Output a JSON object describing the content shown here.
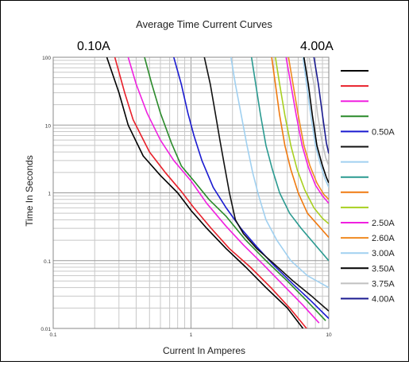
{
  "chart_data": {
    "type": "line",
    "title": "Average Time Current Curves",
    "range_left_label": "0.10A",
    "range_right_label": "4.00A",
    "xlabel": "Current In Amperes",
    "ylabel": "Time In Seconds",
    "x_scale": "log",
    "y_scale": "log",
    "xlim": [
      0.1,
      10
    ],
    "ylim": [
      0.01,
      100
    ],
    "x_ticks": [
      0.1,
      1,
      10
    ],
    "x_tick_labels": [
      "0.1",
      "1",
      "10"
    ],
    "y_ticks": [
      0.01,
      0.1,
      1,
      10,
      100
    ],
    "y_tick_labels": [
      "0.01",
      "0.1",
      "1",
      "10",
      "100"
    ],
    "grid": true,
    "legend_position": "right",
    "series": [
      {
        "label": "",
        "color": "#000000",
        "points": [
          [
            0.245,
            100
          ],
          [
            0.3,
            30
          ],
          [
            0.35,
            10
          ],
          [
            0.45,
            3.5
          ],
          [
            0.6,
            1.8
          ],
          [
            0.8,
            1
          ],
          [
            1.0,
            0.55
          ],
          [
            1.3,
            0.3
          ],
          [
            1.8,
            0.15
          ],
          [
            2.5,
            0.08
          ],
          [
            3.5,
            0.04
          ],
          [
            5,
            0.02
          ],
          [
            6.5,
            0.01
          ]
        ]
      },
      {
        "label": "",
        "color": "#e8202a",
        "points": [
          [
            0.28,
            100
          ],
          [
            0.33,
            30
          ],
          [
            0.38,
            12
          ],
          [
            0.5,
            4
          ],
          [
            0.65,
            2
          ],
          [
            0.85,
            1.05
          ],
          [
            1.05,
            0.6
          ],
          [
            1.4,
            0.3
          ],
          [
            1.9,
            0.15
          ],
          [
            2.7,
            0.08
          ],
          [
            3.8,
            0.04
          ],
          [
            5.2,
            0.02
          ],
          [
            6.9,
            0.01
          ]
        ]
      },
      {
        "label": "",
        "color": "#f020e0",
        "points": [
          [
            0.35,
            100
          ],
          [
            0.4,
            40
          ],
          [
            0.48,
            15
          ],
          [
            0.6,
            6
          ],
          [
            0.75,
            3
          ],
          [
            1.0,
            1.5
          ],
          [
            1.3,
            0.7
          ],
          [
            1.8,
            0.32
          ],
          [
            2.4,
            0.17
          ],
          [
            3.3,
            0.09
          ],
          [
            4.6,
            0.045
          ],
          [
            6.5,
            0.022
          ],
          [
            8.5,
            0.012
          ]
        ]
      },
      {
        "label": "",
        "color": "#2a8a2a",
        "points": [
          [
            0.46,
            100
          ],
          [
            0.52,
            40
          ],
          [
            0.6,
            15
          ],
          [
            0.72,
            5.5
          ],
          [
            0.85,
            2.5
          ],
          [
            1.05,
            1.5
          ],
          [
            1.35,
            0.8
          ],
          [
            1.8,
            0.45
          ],
          [
            2.5,
            0.2
          ],
          [
            3.5,
            0.1
          ],
          [
            5,
            0.05
          ],
          [
            7,
            0.025
          ],
          [
            9.5,
            0.013
          ]
        ]
      },
      {
        "label": "0.50A",
        "color": "#1a1ad0",
        "points": [
          [
            0.75,
            100
          ],
          [
            0.85,
            40
          ],
          [
            0.95,
            15
          ],
          [
            1.05,
            7
          ],
          [
            1.2,
            3
          ],
          [
            1.45,
            1.2
          ],
          [
            1.8,
            0.6
          ],
          [
            2.3,
            0.3
          ],
          [
            3,
            0.16
          ],
          [
            4,
            0.085
          ],
          [
            5.5,
            0.045
          ],
          [
            7.5,
            0.025
          ],
          [
            10,
            0.014
          ]
        ]
      },
      {
        "label": "",
        "color": "#111111",
        "points": [
          [
            1.25,
            100
          ],
          [
            1.38,
            40
          ],
          [
            1.5,
            15
          ],
          [
            1.62,
            6
          ],
          [
            1.75,
            2.5
          ],
          [
            1.9,
            1
          ],
          [
            2.1,
            0.4
          ],
          [
            2.4,
            0.25
          ],
          [
            3,
            0.15
          ],
          [
            4,
            0.09
          ],
          [
            5.5,
            0.05
          ],
          [
            7.5,
            0.03
          ],
          [
            10,
            0.018
          ]
        ]
      },
      {
        "label": "",
        "color": "#a0d0f0",
        "points": [
          [
            1.95,
            100
          ],
          [
            2.1,
            40
          ],
          [
            2.3,
            15
          ],
          [
            2.55,
            5
          ],
          [
            2.8,
            2
          ],
          [
            3.1,
            0.9
          ],
          [
            3.5,
            0.4
          ],
          [
            4.2,
            0.2
          ],
          [
            5.3,
            0.1
          ],
          [
            7,
            0.06
          ],
          [
            10,
            0.04
          ]
        ]
      },
      {
        "label": "",
        "color": "#2a9a90",
        "points": [
          [
            2.75,
            100
          ],
          [
            2.95,
            40
          ],
          [
            3.2,
            14
          ],
          [
            3.5,
            5
          ],
          [
            3.9,
            2.2
          ],
          [
            4.4,
            1
          ],
          [
            5.2,
            0.5
          ],
          [
            6.3,
            0.3
          ],
          [
            7.8,
            0.18
          ],
          [
            10,
            0.1
          ]
        ]
      },
      {
        "label": "",
        "color": "#f07a10",
        "points": [
          [
            3.85,
            100
          ],
          [
            4.1,
            40
          ],
          [
            4.4,
            14
          ],
          [
            4.8,
            5
          ],
          [
            5.3,
            2.2
          ],
          [
            6,
            1
          ],
          [
            7,
            0.5
          ],
          [
            8.5,
            0.32
          ],
          [
            10,
            0.22
          ]
        ]
      },
      {
        "label": "",
        "color": "#a8d020",
        "points": [
          [
            4.1,
            100
          ],
          [
            4.4,
            40
          ],
          [
            4.8,
            14
          ],
          [
            5.3,
            5
          ],
          [
            5.9,
            2.2
          ],
          [
            6.7,
            1.1
          ],
          [
            7.8,
            0.6
          ],
          [
            9,
            0.42
          ],
          [
            10,
            0.35
          ]
        ]
      },
      {
        "label": "2.50A",
        "color": "#f020e0",
        "points": [
          [
            4.9,
            100
          ],
          [
            5.3,
            40
          ],
          [
            5.8,
            14
          ],
          [
            6.4,
            5
          ],
          [
            7.1,
            2.4
          ],
          [
            8,
            1.3
          ],
          [
            9,
            0.9
          ],
          [
            10,
            0.7
          ]
        ]
      },
      {
        "label": "2.60A",
        "color": "#f08a20",
        "points": [
          [
            5.1,
            100
          ],
          [
            5.5,
            40
          ],
          [
            6,
            14
          ],
          [
            6.6,
            5
          ],
          [
            7.3,
            2.5
          ],
          [
            8.2,
            1.4
          ],
          [
            9.2,
            0.95
          ],
          [
            10,
            0.8
          ]
        ]
      },
      {
        "label": "3.00A",
        "color": "#a0d0f0",
        "points": [
          [
            6.5,
            100
          ],
          [
            6.9,
            40
          ],
          [
            7.4,
            14
          ],
          [
            8,
            5
          ],
          [
            8.7,
            2.6
          ],
          [
            9.4,
            1.6
          ],
          [
            10,
            1.2
          ]
        ]
      },
      {
        "label": "3.50A",
        "color": "#000000",
        "points": [
          [
            6.6,
            100
          ],
          [
            7.1,
            40
          ],
          [
            7.6,
            14
          ],
          [
            8.2,
            5
          ],
          [
            8.9,
            2.7
          ],
          [
            9.6,
            1.7
          ],
          [
            10,
            1.4
          ]
        ]
      },
      {
        "label": "3.75A",
        "color": "#c0c0c0",
        "points": [
          [
            7.2,
            100
          ],
          [
            7.8,
            40
          ],
          [
            8.3,
            14
          ],
          [
            8.9,
            6
          ],
          [
            9.5,
            3.3
          ],
          [
            10,
            2.5
          ]
        ]
      },
      {
        "label": "4.00A",
        "color": "#1a1a90",
        "points": [
          [
            7.8,
            100
          ],
          [
            8.4,
            40
          ],
          [
            9,
            14
          ],
          [
            9.6,
            5.5
          ],
          [
            10,
            3.8
          ]
        ]
      }
    ]
  }
}
